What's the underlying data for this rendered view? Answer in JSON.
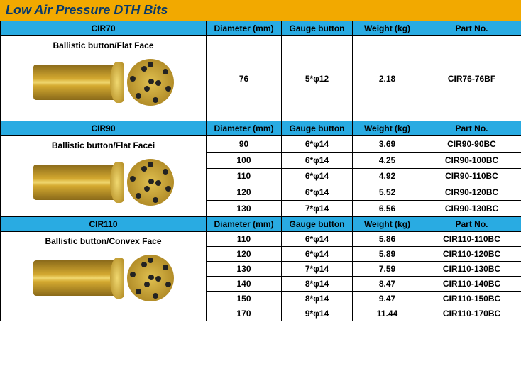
{
  "title": "Low Air Pressure DTH Bits",
  "colors": {
    "title_bg": "#f2a900",
    "title_text": "#0a3a6a",
    "header_bg": "#29abe2",
    "header_text": "#000000",
    "cell_bg": "#ffffff"
  },
  "columns": [
    "Diameter (mm)",
    "Gauge button",
    "Weight (kg)",
    "Part No."
  ],
  "sections": [
    {
      "name": "CIR70",
      "desc": "Ballistic button/Flat Face",
      "rows": [
        {
          "diameter": "76",
          "gauge": "5*φ12",
          "weight": "2.18",
          "part": "CIR76-76BF"
        }
      ]
    },
    {
      "name": "CIR90",
      "desc": "Ballistic button/Flat Facei",
      "rows": [
        {
          "diameter": "90",
          "gauge": "6*φ14",
          "weight": "3.69",
          "part": "CIR90-90BC"
        },
        {
          "diameter": "100",
          "gauge": "6*φ14",
          "weight": "4.25",
          "part": "CIR90-100BC"
        },
        {
          "diameter": "110",
          "gauge": "6*φ14",
          "weight": "4.92",
          "part": "CIR90-110BC"
        },
        {
          "diameter": "120",
          "gauge": "6*φ14",
          "weight": "5.52",
          "part": "CIR90-120BC"
        },
        {
          "diameter": "130",
          "gauge": "7*φ14",
          "weight": "6.56",
          "part": "CIR90-130BC"
        }
      ]
    },
    {
      "name": "CIR110",
      "desc": "Ballistic button/Convex Face",
      "rows": [
        {
          "diameter": "110",
          "gauge": "6*φ14",
          "weight": "5.86",
          "part": "CIR110-110BC"
        },
        {
          "diameter": "120",
          "gauge": "6*φ14",
          "weight": "5.89",
          "part": "CIR110-120BC"
        },
        {
          "diameter": "130",
          "gauge": "7*φ14",
          "weight": "7.59",
          "part": "CIR110-130BC"
        },
        {
          "diameter": "140",
          "gauge": "8*φ14",
          "weight": "8.47",
          "part": "CIR110-140BC"
        },
        {
          "diameter": "150",
          "gauge": "8*φ14",
          "weight": "9.47",
          "part": "CIR110-150BC"
        },
        {
          "diameter": "170",
          "gauge": "9*φ14",
          "weight": "11.44",
          "part": "CIR110-170BC"
        }
      ]
    }
  ]
}
